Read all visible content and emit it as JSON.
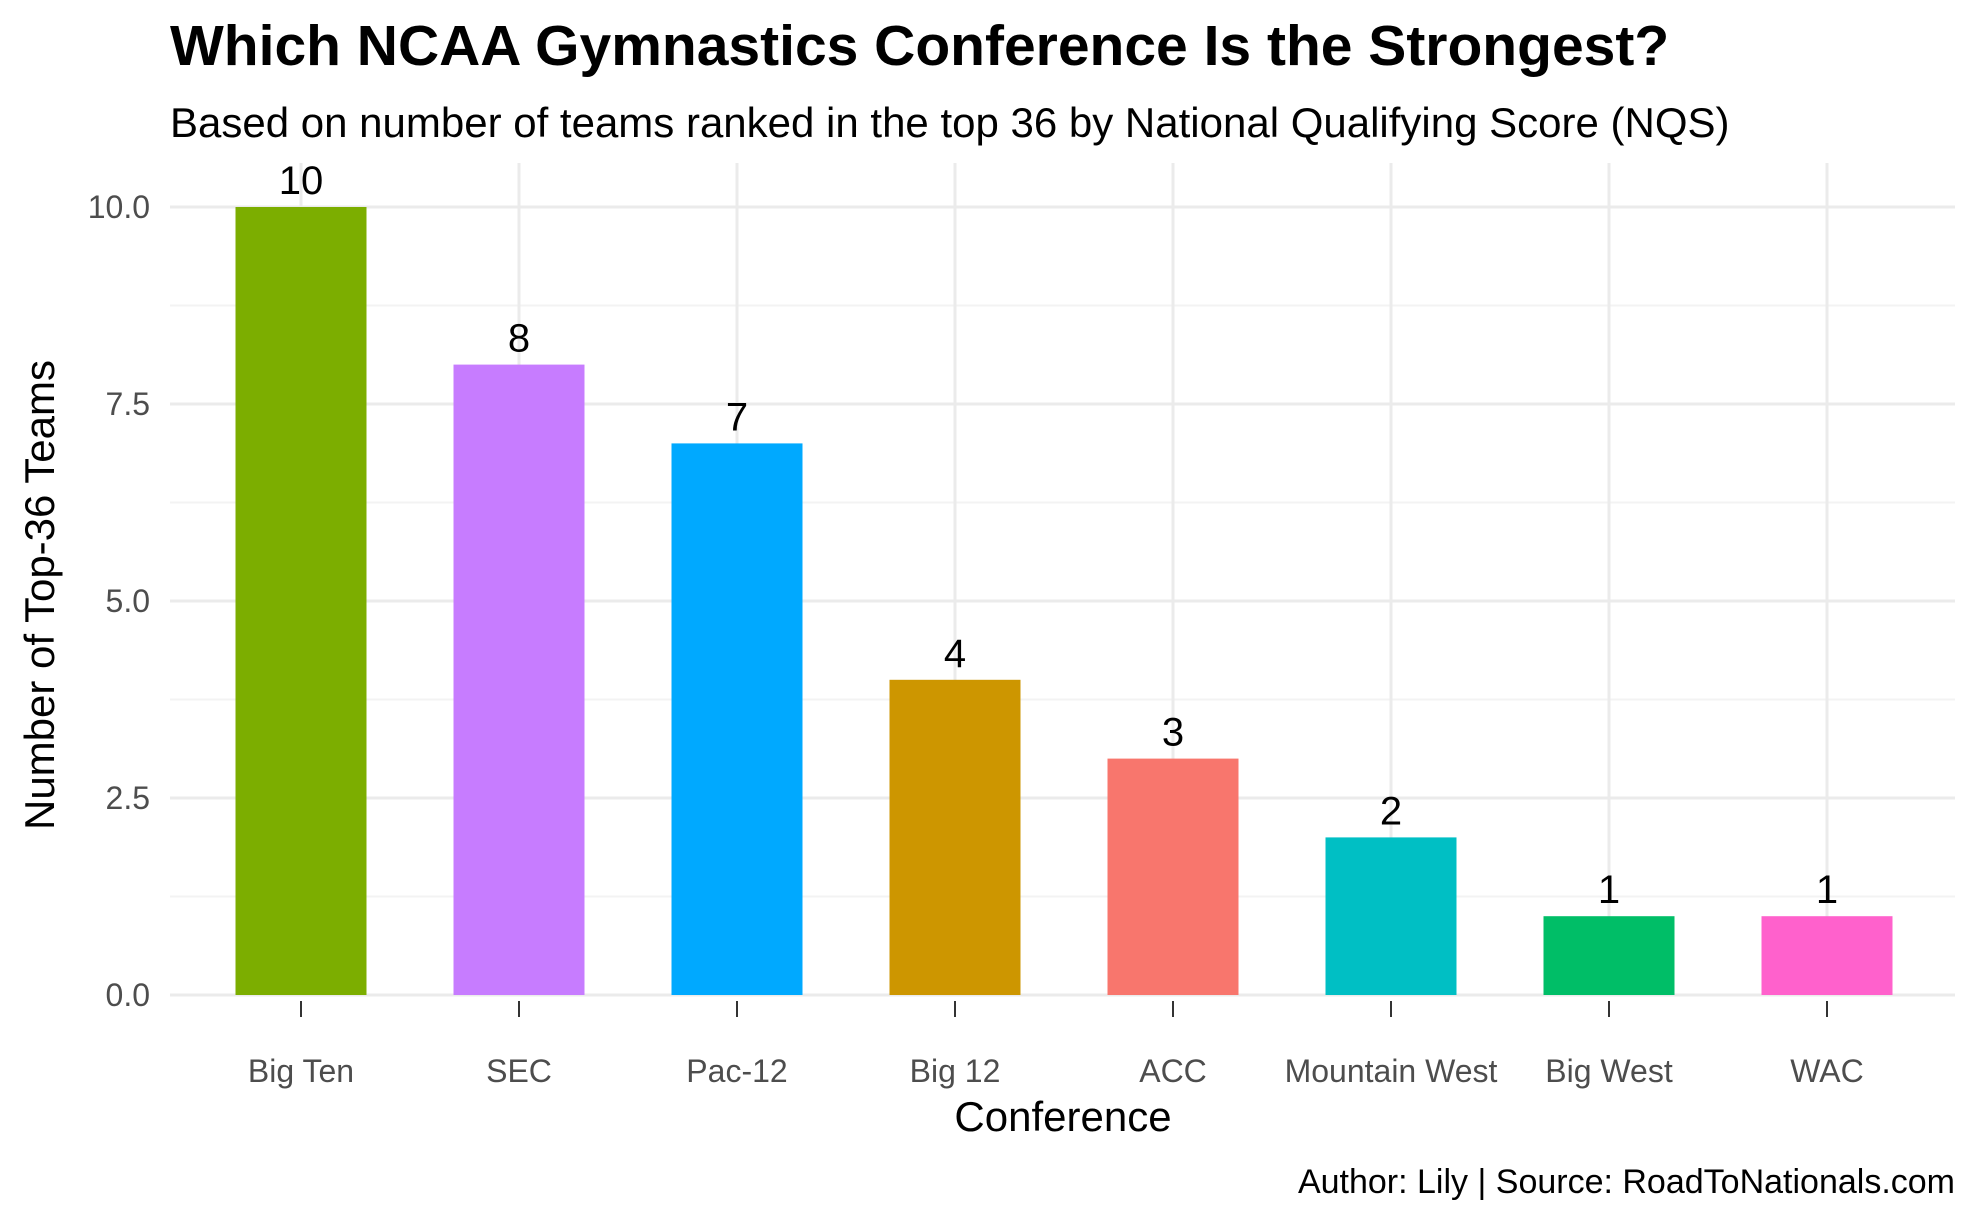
{
  "chart_data": {
    "type": "bar",
    "title": "Which NCAA Gymnastics Conference Is the Strongest?",
    "subtitle": "Based on number of teams ranked in the top 36 by National Qualifying Score (NQS)",
    "xlabel": "Conference",
    "ylabel": "Number of Top-36 Teams",
    "caption": "Author: Lily | Source: RoadToNationals.com",
    "categories": [
      "Big Ten",
      "SEC",
      "Pac-12",
      "Big 12",
      "ACC",
      "Mountain West",
      "Big West",
      "WAC"
    ],
    "values": [
      10,
      8,
      7,
      4,
      3,
      2,
      1,
      1
    ],
    "colors": [
      "#7CAE00",
      "#C77CFF",
      "#00A9FF",
      "#CD9600",
      "#F8766D",
      "#00BFC4",
      "#00BE67",
      "#FF61CC"
    ],
    "ylim": [
      0,
      10
    ],
    "yticks": [
      0,
      2.5,
      5,
      7.5,
      10
    ],
    "ytick_labels": [
      "0.0",
      "2.5",
      "5.0",
      "7.5",
      "10.0"
    ],
    "grid": true,
    "legend": "none"
  }
}
